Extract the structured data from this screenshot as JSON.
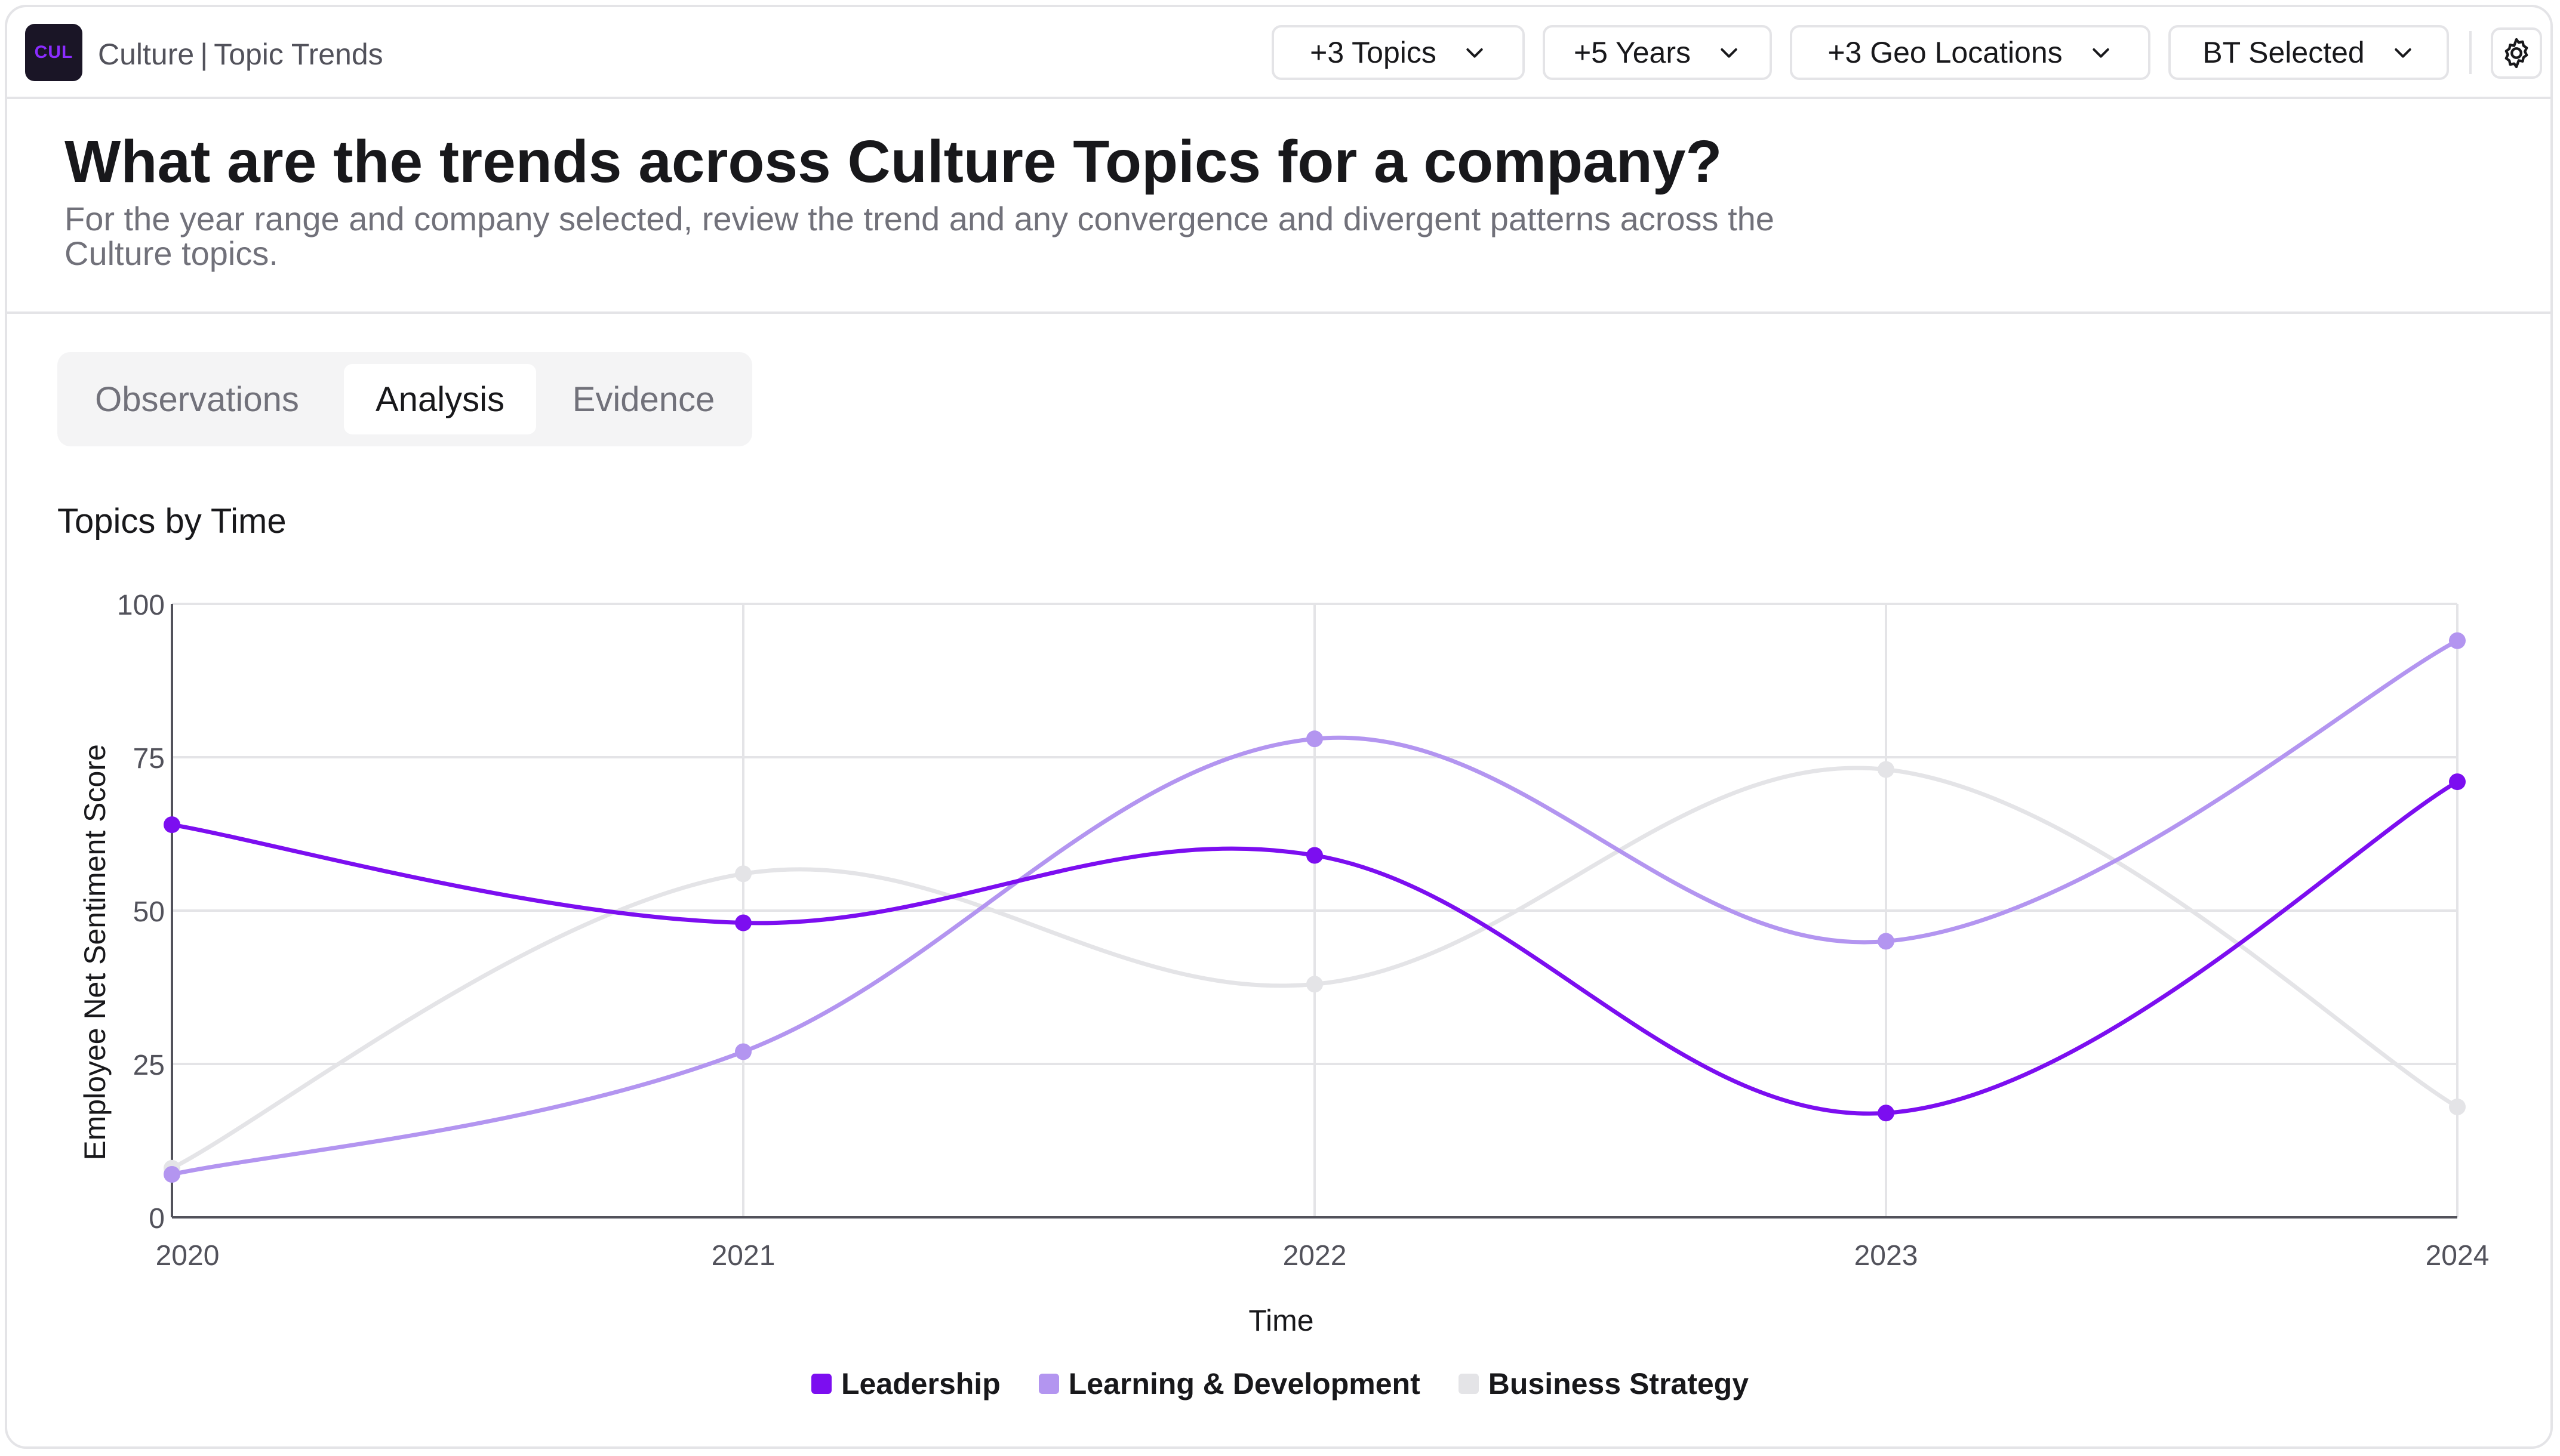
{
  "header": {
    "logo_text": "CUL",
    "breadcrumb_app": "Culture",
    "breadcrumb_sep": "|",
    "breadcrumb_page": "Topic Trends",
    "filters": {
      "topics": "+3 Topics",
      "years": "+5 Years",
      "geo": "+3 Geo Locations",
      "bt": "BT Selected"
    },
    "settings_icon": "gear-icon"
  },
  "page": {
    "title": "What are the trends across Culture Topics for a company?",
    "subtitle": "For the year range and company selected, review the trend and any convergence and divergent patterns across the Culture topics."
  },
  "tabs": {
    "observations": "Observations",
    "analysis": "Analysis",
    "evidence": "Evidence",
    "active": "Analysis"
  },
  "chart_data": {
    "type": "line",
    "title": "Topics by Time",
    "xlabel": "Time",
    "ylabel": "Employee Net Sentiment Score",
    "x": [
      "2020",
      "2021",
      "2022",
      "2023",
      "2024"
    ],
    "ylim": [
      0,
      100
    ],
    "yticks": [
      "0",
      "25",
      "50",
      "75",
      "100"
    ],
    "grid": true,
    "legend_position": "bottom-center",
    "series": [
      {
        "name": "Leadership",
        "color": "#7c0ef0",
        "values": [
          64,
          48,
          59,
          17,
          71
        ]
      },
      {
        "name": "Learning & Development",
        "color": "#b395f0",
        "values": [
          7,
          27,
          78,
          45,
          94
        ]
      },
      {
        "name": "Business Strategy",
        "color": "#e4e4e7",
        "values": [
          8,
          56,
          38,
          73,
          18
        ]
      }
    ]
  }
}
